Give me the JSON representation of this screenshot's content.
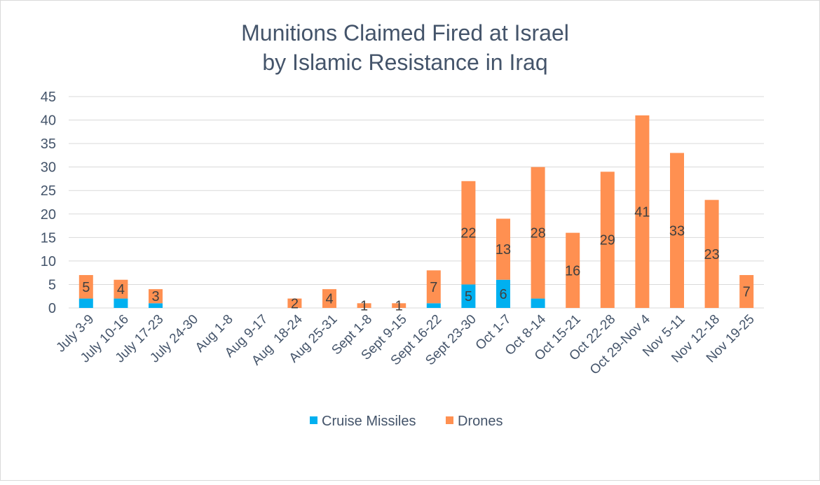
{
  "chart_data": {
    "type": "bar",
    "stacked": true,
    "title": "Munitions Claimed Fired at Israel",
    "subtitle": "by Islamic Resistance in Iraq",
    "xlabel": "",
    "ylabel": "",
    "ylim": [
      0,
      45
    ],
    "yticks": [
      0,
      5,
      10,
      15,
      20,
      25,
      30,
      35,
      40,
      45
    ],
    "grid": true,
    "legend_position": "bottom",
    "categories": [
      "July 3-9",
      "July 10-16",
      "July 17-23",
      "July 24-30",
      "Aug 1-8",
      "Aug 9-17",
      "Aug  18-24",
      "Aug 25-31",
      "Sept 1-8",
      "Sept 9-15",
      "Sept 16-22",
      "Sept 23-30",
      "Oct 1-7",
      "Oct 8-14",
      "Oct 15-21",
      "Oct 22-28",
      "Oct 29-Nov 4",
      "Nov 5-11",
      "Nov 12-18",
      "Nov 19-25"
    ],
    "series": [
      {
        "name": "Cruise Missiles",
        "color": "#00b0f0",
        "values": [
          2,
          2,
          1,
          0,
          0,
          0,
          0,
          0,
          0,
          0,
          1,
          5,
          6,
          2,
          0,
          0,
          0,
          0,
          0,
          0
        ],
        "labels": [
          null,
          null,
          null,
          null,
          null,
          null,
          null,
          null,
          null,
          null,
          null,
          5,
          6,
          null,
          null,
          null,
          null,
          null,
          null,
          null
        ]
      },
      {
        "name": "Drones",
        "color": "#ff9051",
        "values": [
          5,
          4,
          3,
          0,
          0,
          0,
          2,
          4,
          1,
          1,
          7,
          22,
          13,
          28,
          16,
          29,
          41,
          33,
          23,
          7
        ],
        "labels": [
          5,
          4,
          3,
          null,
          null,
          null,
          2,
          4,
          1,
          1,
          7,
          22,
          13,
          28,
          16,
          29,
          41,
          33,
          23,
          7
        ]
      }
    ]
  },
  "colors": {
    "title": "#44546a",
    "axis_text": "#44546a",
    "data_label": "#404040",
    "gridline": "#d9d9d9"
  }
}
